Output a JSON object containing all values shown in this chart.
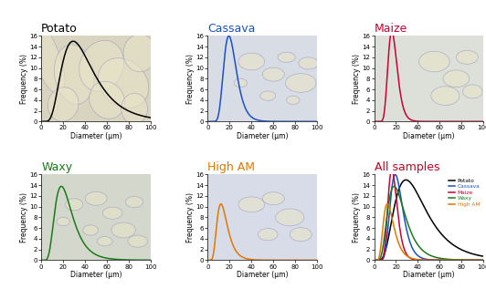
{
  "title_potato": "Potato",
  "title_cassava": "Cassava",
  "title_maize": "Maize",
  "title_waxy": "Waxy",
  "title_highAM": "High AM",
  "title_all": "All samples",
  "color_potato": "#000000",
  "color_cassava": "#1a50c8",
  "color_maize": "#cc0033",
  "color_waxy": "#1a7a1a",
  "color_highAM": "#e07800",
  "color_all_title": "#cc0022",
  "potato": {
    "mu": 3.62,
    "sigma": 0.5,
    "peak": 15.0
  },
  "cassava": {
    "mu": 3.05,
    "sigma": 0.3,
    "peak": 16.0
  },
  "maize": {
    "mu": 2.85,
    "sigma": 0.26,
    "peak": 16.8
  },
  "waxy": {
    "mu": 3.1,
    "sigma": 0.44,
    "peak": 13.8
  },
  "highAM": {
    "mu": 2.65,
    "sigma": 0.4,
    "peak": 10.5
  },
  "xmin": 0,
  "xmax": 100,
  "ymin": 0,
  "ymax": 16,
  "yticks": [
    0,
    2,
    4,
    6,
    8,
    10,
    12,
    14,
    16
  ],
  "xticks": [
    0,
    20,
    40,
    60,
    80,
    100
  ],
  "xlabel": "Diameter (μm)",
  "ylabel": "Frequency (%)",
  "bg_light": "#e8e4d8",
  "bg_light2": "#dde4e8"
}
